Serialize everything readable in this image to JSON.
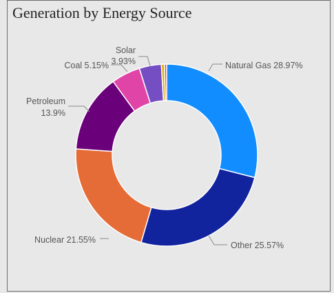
{
  "chart_data": {
    "type": "pie",
    "variant": "donut",
    "title": "Generation by Energy Source",
    "legend": "none",
    "slices": [
      {
        "name": "Natural Gas",
        "value": 28.97,
        "label": "Natural Gas 28.97%",
        "color": "#118DFF"
      },
      {
        "name": "Other",
        "value": 25.57,
        "label": "Other 25.57%",
        "color": "#12239E"
      },
      {
        "name": "Nuclear",
        "value": 21.55,
        "label": "Nuclear 21.55%",
        "color": "#E66C37"
      },
      {
        "name": "Petroleum",
        "value": 13.9,
        "label": [
          "Petroleum",
          "13.9%"
        ],
        "color": "#6B007B"
      },
      {
        "name": "Coal",
        "value": 5.15,
        "label": "Coal 5.15%",
        "color": "#E044A7"
      },
      {
        "name": "Solar",
        "value": 3.93,
        "label": [
          "Solar",
          "3.93%"
        ],
        "color": "#744EC2"
      },
      {
        "name": "",
        "value": 0.55,
        "label": "",
        "color": "#D9B300"
      },
      {
        "name": "",
        "value": 0.38,
        "label": "",
        "color": "#D64550"
      }
    ]
  }
}
